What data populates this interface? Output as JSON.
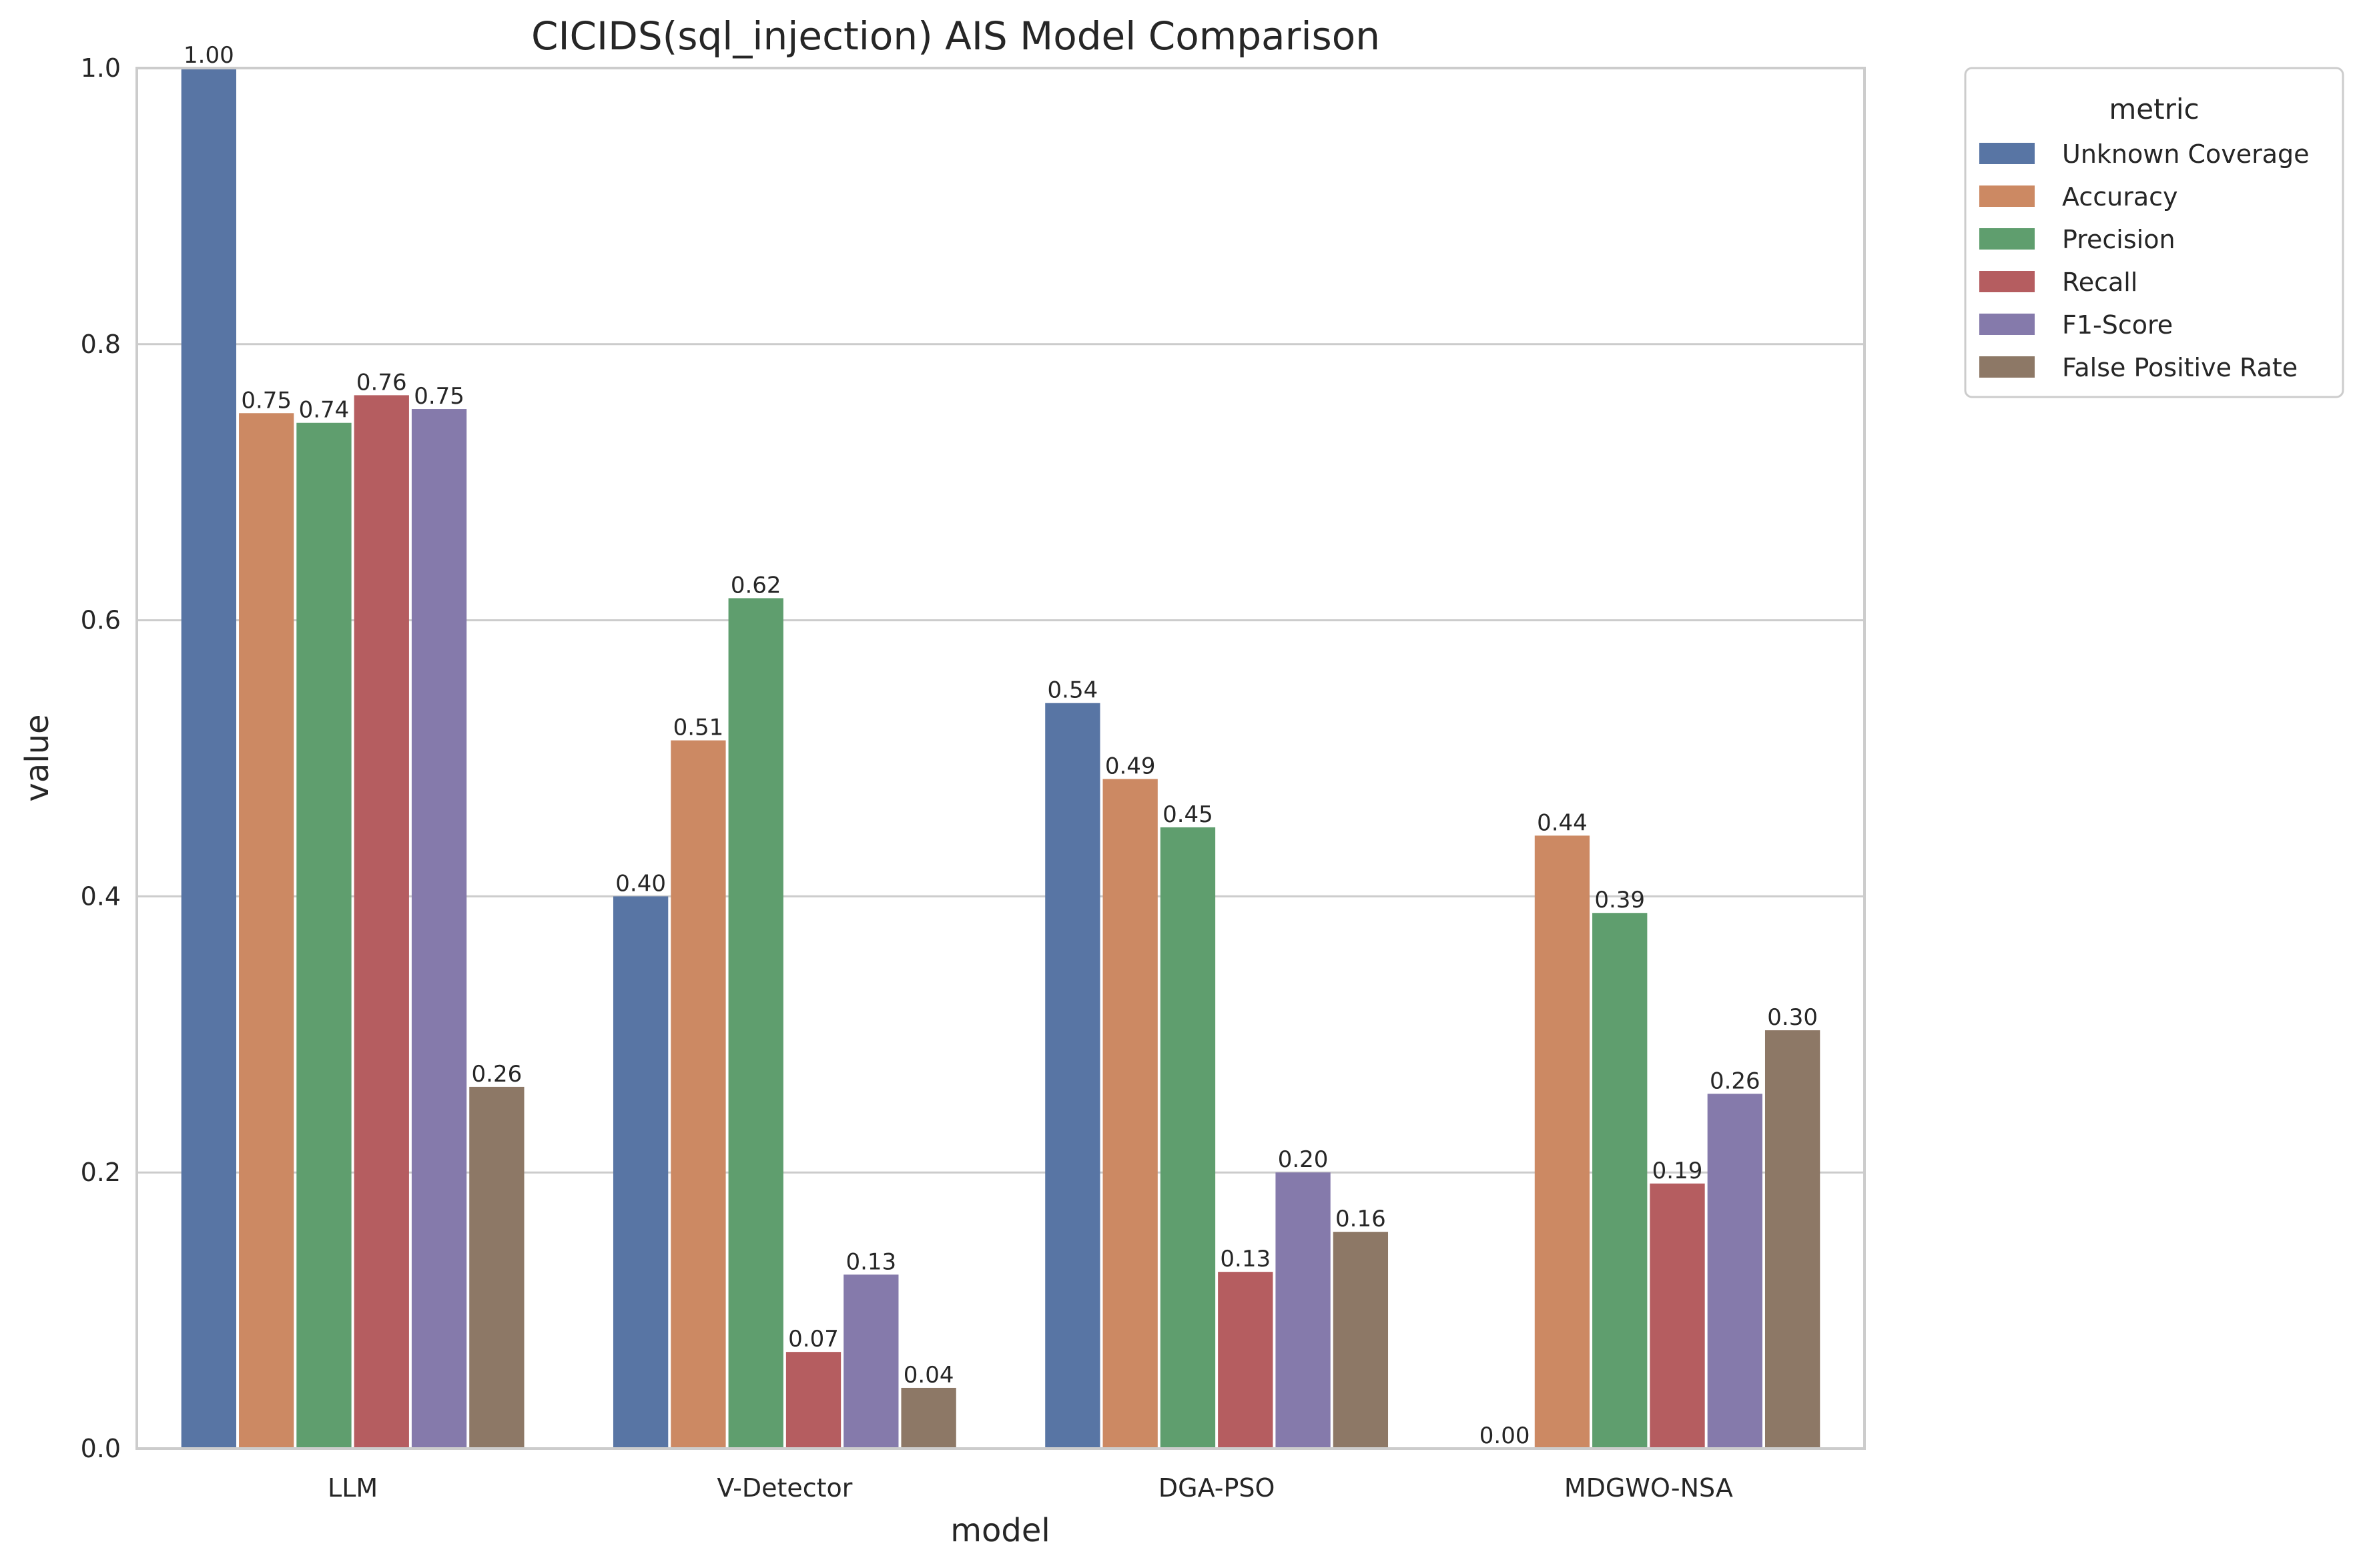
{
  "chart_data": {
    "type": "bar",
    "title": "CICIDS(sql_injection) AIS Model Comparison",
    "xlabel": "model",
    "ylabel": "value",
    "ylim": [
      0,
      1.0
    ],
    "yticks": [
      "0.0",
      "0.2",
      "0.4",
      "0.6",
      "0.8",
      "1.0"
    ],
    "grid": "horizontal",
    "legend_title": "metric",
    "legend_position": "outside-top-right",
    "categories": [
      "LLM",
      "V-Detector",
      "DGA-PSO",
      "MDGWO-NSA"
    ],
    "series": [
      {
        "name": "Unknown Coverage",
        "color": "#5875a4",
        "values": [
          1.0,
          0.4,
          0.54,
          0.0
        ],
        "labels": [
          "1.00",
          "0.40",
          "0.54",
          "0.00"
        ]
      },
      {
        "name": "Accuracy",
        "color": "#cc8963",
        "values": [
          0.75,
          0.513,
          0.485,
          0.444
        ],
        "labels": [
          "0.75",
          "0.51",
          "0.49",
          "0.44"
        ]
      },
      {
        "name": "Precision",
        "color": "#5f9e6e",
        "values": [
          0.743,
          0.616,
          0.45,
          0.388
        ],
        "labels": [
          "0.74",
          "0.62",
          "0.45",
          "0.39"
        ]
      },
      {
        "name": "Recall",
        "color": "#b55d60",
        "values": [
          0.763,
          0.07,
          0.128,
          0.192
        ],
        "labels": [
          "0.76",
          "0.07",
          "0.13",
          "0.19"
        ]
      },
      {
        "name": "F1-Score",
        "color": "#857aab",
        "values": [
          0.753,
          0.126,
          0.2,
          0.257
        ],
        "labels": [
          "0.75",
          "0.13",
          "0.20",
          "0.26"
        ]
      },
      {
        "name": "False Positive Rate",
        "color": "#8d7866",
        "values": [
          0.262,
          0.044,
          0.157,
          0.303
        ],
        "labels": [
          "0.26",
          "0.04",
          "0.16",
          "0.30"
        ]
      }
    ]
  }
}
